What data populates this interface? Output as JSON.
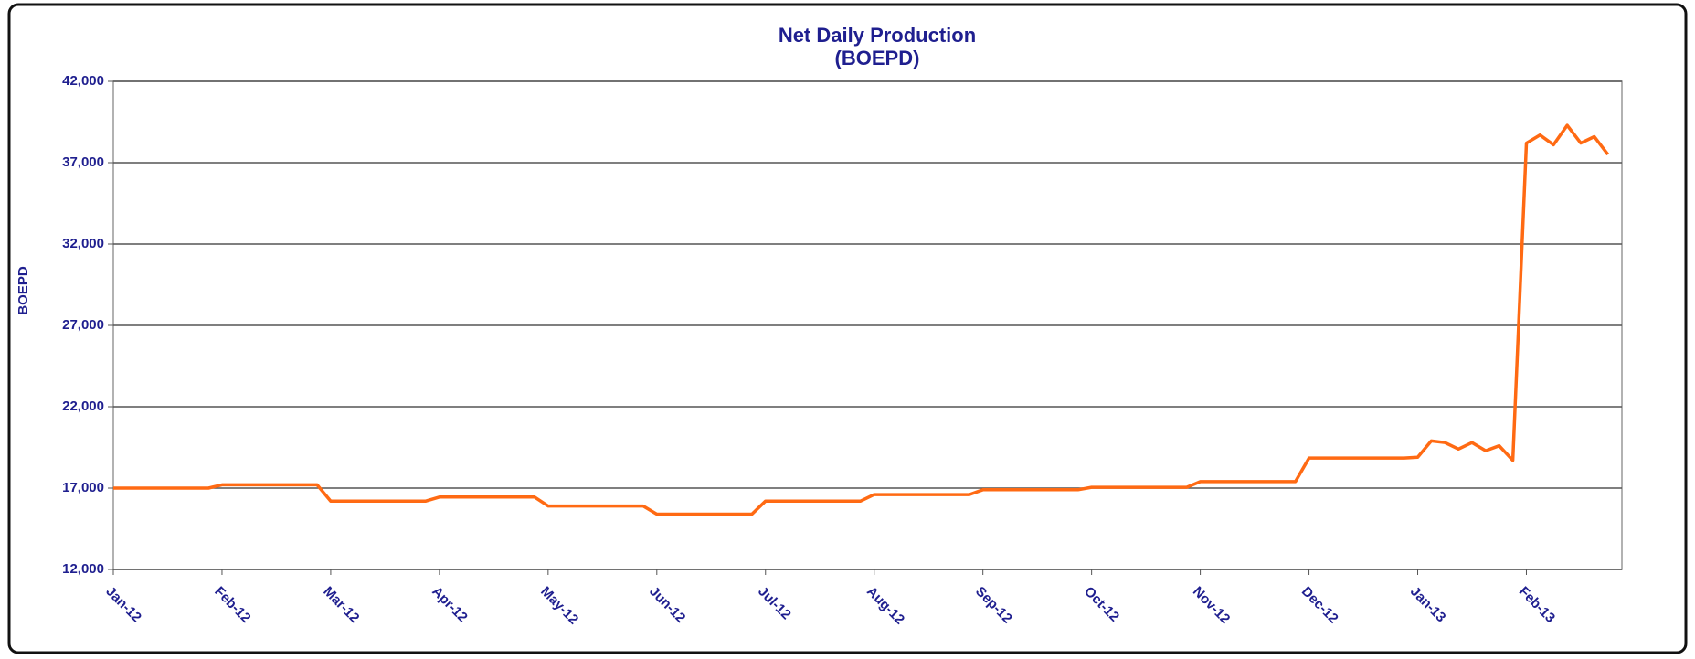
{
  "chart_data": {
    "type": "line",
    "title": "Net Daily Production",
    "subtitle": "(BOEPD)",
    "y_label": "BOEPD",
    "categories": [
      "Jan-12",
      null,
      null,
      null,
      null,
      null,
      null,
      null,
      "Feb-12",
      null,
      null,
      null,
      null,
      null,
      null,
      null,
      "Mar-12",
      null,
      null,
      null,
      null,
      null,
      null,
      null,
      "Apr-12",
      null,
      null,
      null,
      null,
      null,
      null,
      null,
      "May-12",
      null,
      null,
      null,
      null,
      null,
      null,
      null,
      "Jun-12",
      null,
      null,
      null,
      null,
      null,
      null,
      null,
      "Jul-12",
      null,
      null,
      null,
      null,
      null,
      null,
      null,
      "Aug-12",
      null,
      null,
      null,
      null,
      null,
      null,
      null,
      "Sep-12",
      null,
      null,
      null,
      null,
      null,
      null,
      null,
      "Oct-12",
      null,
      null,
      null,
      null,
      null,
      null,
      null,
      "Nov-12",
      null,
      null,
      null,
      null,
      null,
      null,
      null,
      "Dec-12",
      null,
      null,
      null,
      null,
      null,
      null,
      null,
      "Jan-13",
      null,
      null,
      null,
      null,
      null,
      null,
      null,
      "Feb-13",
      null,
      null,
      null,
      null,
      null,
      null
    ],
    "series": [
      {
        "name": "BOEPD",
        "color": "#ff6a13",
        "values": [
          17000,
          17000,
          17000,
          17000,
          17000,
          17000,
          17000,
          17000,
          17200,
          17200,
          17200,
          17200,
          17200,
          17200,
          17200,
          17200,
          16200,
          16200,
          16200,
          16200,
          16200,
          16200,
          16200,
          16200,
          16450,
          16450,
          16450,
          16450,
          16450,
          16450,
          16450,
          16450,
          15900,
          15900,
          15900,
          15900,
          15900,
          15900,
          15900,
          15900,
          15400,
          15400,
          15400,
          15400,
          15400,
          15400,
          15400,
          15400,
          16200,
          16200,
          16200,
          16200,
          16200,
          16200,
          16200,
          16200,
          16600,
          16600,
          16600,
          16600,
          16600,
          16600,
          16600,
          16600,
          16900,
          16900,
          16900,
          16900,
          16900,
          16900,
          16900,
          16900,
          17050,
          17050,
          17050,
          17050,
          17050,
          17050,
          17050,
          17050,
          17400,
          17400,
          17400,
          17400,
          17400,
          17400,
          17400,
          17400,
          18850,
          18850,
          18850,
          18850,
          18850,
          18850,
          18850,
          18850,
          18900,
          19900,
          19800,
          19400,
          19800,
          19300,
          19600,
          18700,
          38200,
          38700,
          38100,
          39300,
          38200,
          38600,
          37500
        ]
      }
    ],
    "ylim": [
      12000,
      42000
    ],
    "yticks": [
      {
        "value": 12000,
        "label": "12,000"
      },
      {
        "value": 17000,
        "label": "17,000"
      },
      {
        "value": 22000,
        "label": "22,000"
      },
      {
        "value": 27000,
        "label": "27,000"
      },
      {
        "value": 32000,
        "label": "32,000"
      },
      {
        "value": 37000,
        "label": "37,000"
      },
      {
        "value": 42000,
        "label": "42,000"
      }
    ],
    "grid": true
  }
}
